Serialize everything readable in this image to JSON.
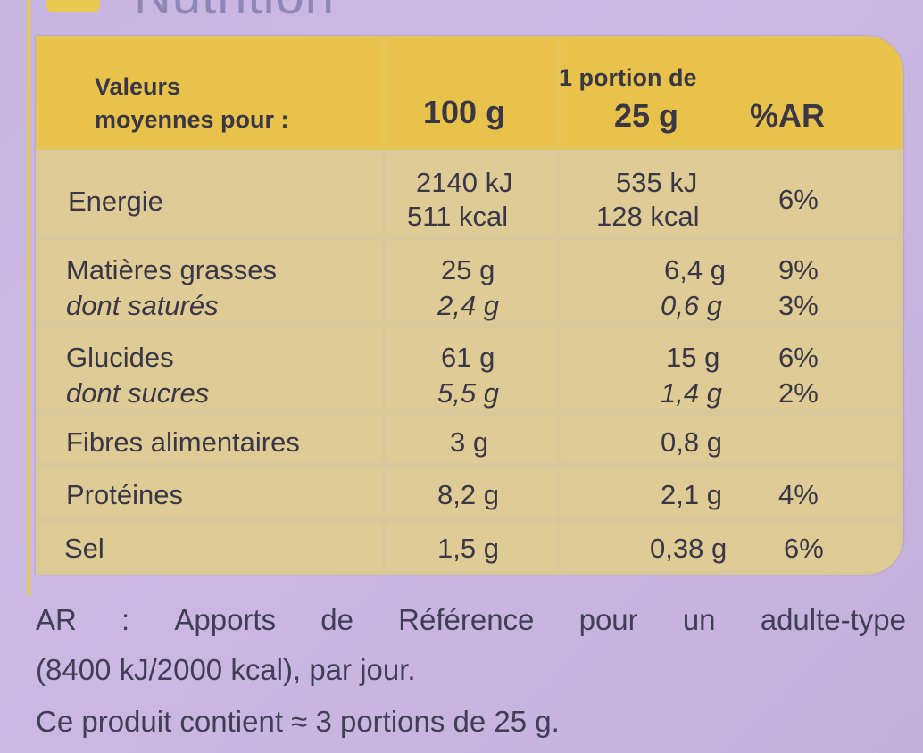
{
  "heading": "Nutrition",
  "table": {
    "header": {
      "label_line1": "Valeurs",
      "label_line2": "moyennes pour :",
      "per100": "100 g",
      "portion_line1": "1 portion de",
      "portion_line2": "25 g",
      "ar": "%AR"
    },
    "rows": [
      {
        "name": "Energie",
        "v100_line1": "2140 kJ",
        "v100_line2": "511 kcal",
        "portion_line1": "535 kJ",
        "portion_line2": "128 kcal",
        "ar": "6%"
      },
      {
        "name": "Matières grasses",
        "sub": "dont saturés",
        "v100": "25 g",
        "v100_sub": "2,4 g",
        "portion": "6,4 g",
        "portion_sub": "0,6 g",
        "ar": "9%",
        "ar_sub": "3%"
      },
      {
        "name": "Glucides",
        "sub": "dont sucres",
        "v100": "61 g",
        "v100_sub": "5,5 g",
        "portion": "15 g",
        "portion_sub": "1,4 g",
        "ar": "6%",
        "ar_sub": "2%"
      },
      {
        "name": "Fibres alimentaires",
        "v100": "3 g",
        "portion": "0,8 g"
      },
      {
        "name": "Protéines",
        "v100": "8,2 g",
        "portion": "2,1 g",
        "ar": "4%"
      },
      {
        "name": "Sel",
        "v100": "1,5 g",
        "portion": "0,38 g",
        "ar": "6%"
      }
    ]
  },
  "footnote": {
    "line1_words": [
      "AR",
      ":",
      "Apports",
      "de",
      "Référence",
      "pour",
      "un",
      "adulte-type"
    ],
    "line2": "(8400 kJ/2000 kcal), par jour.",
    "line3": "Ce produit contient ≈ 3 portions de 25 g."
  }
}
